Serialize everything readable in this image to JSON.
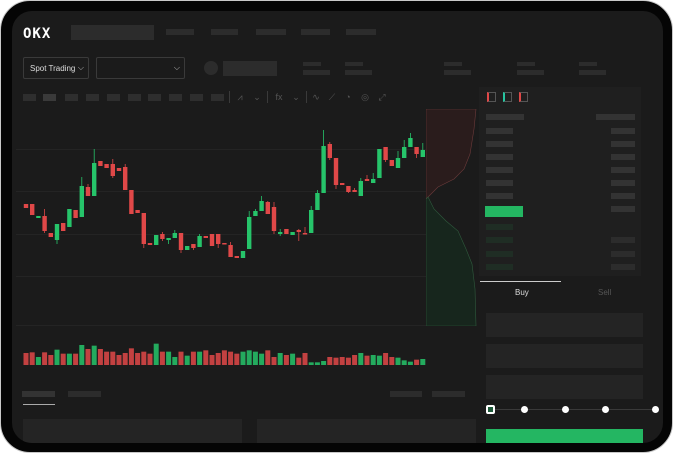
{
  "header": {
    "logo": "OKX"
  },
  "market_select": {
    "label": "Spot Trading"
  },
  "trade_tabs": [
    {
      "label": "Buy",
      "active": true
    },
    {
      "label": "Sell",
      "active": false
    }
  ],
  "colors": {
    "up": "#26c46a",
    "down": "#e04848",
    "buy_button": "#24b662",
    "background": "#1b1b1b"
  },
  "toolbar_icons": [
    "candles-icon",
    "indicator-icon",
    "fx-icon",
    "line-icon",
    "draw-icon",
    "camera-icon",
    "settings-icon",
    "fullscreen-icon"
  ],
  "orderbook_icons": [
    "orderbook-both-icon",
    "orderbook-bids-icon",
    "orderbook-asks-icon"
  ],
  "slider": {
    "value_percent": 0,
    "steps": [
      0,
      25,
      50,
      75,
      100
    ]
  },
  "chart_data": {
    "type": "candlestick",
    "title": "",
    "grid": true,
    "ylim": [
      100,
      250
    ],
    "ohlc": [
      [
        167,
        167,
        163,
        163
      ],
      [
        167,
        167,
        156,
        156
      ],
      [
        153,
        155,
        153,
        155
      ],
      [
        155,
        162,
        138,
        140
      ],
      [
        138,
        138,
        134,
        134
      ],
      [
        131,
        147,
        127,
        147
      ],
      [
        148,
        148,
        140,
        140
      ],
      [
        144,
        162,
        144,
        162
      ],
      [
        161,
        161,
        153,
        153
      ],
      [
        154,
        194,
        154,
        185
      ],
      [
        184,
        187,
        175,
        175
      ],
      [
        175,
        222,
        175,
        208
      ],
      [
        210,
        210,
        205,
        205
      ],
      [
        207,
        207,
        203,
        203
      ],
      [
        207,
        212,
        193,
        195
      ],
      [
        203,
        203,
        200,
        200
      ],
      [
        204,
        207,
        181,
        181
      ],
      [
        181,
        181,
        157,
        157
      ],
      [
        161,
        161,
        158,
        158
      ],
      [
        158,
        158,
        123,
        127
      ],
      [
        128,
        128,
        126,
        126
      ],
      [
        126,
        136,
        126,
        136
      ],
      [
        137,
        139,
        130,
        132
      ],
      [
        131,
        133,
        127,
        133
      ],
      [
        133,
        141,
        133,
        138
      ],
      [
        138,
        138,
        118,
        121
      ],
      [
        121,
        125,
        121,
        125
      ],
      [
        127,
        127,
        121,
        123
      ],
      [
        124,
        137,
        124,
        135
      ],
      [
        135,
        135,
        133,
        133
      ],
      [
        137,
        137,
        125,
        125
      ],
      [
        137,
        137,
        123,
        127
      ],
      [
        128,
        128,
        127,
        127
      ],
      [
        126,
        129,
        114,
        114
      ],
      [
        115,
        115,
        113,
        113
      ],
      [
        113,
        120,
        113,
        120
      ],
      [
        122,
        160,
        122,
        154
      ],
      [
        155,
        162,
        155,
        160
      ],
      [
        160,
        175,
        160,
        170
      ],
      [
        169,
        170,
        157,
        157
      ],
      [
        164,
        169,
        137,
        140
      ],
      [
        137,
        142,
        135,
        139
      ],
      [
        142,
        142,
        137,
        137
      ],
      [
        136,
        139,
        136,
        139
      ],
      [
        141,
        142,
        130,
        139
      ],
      [
        138,
        144,
        137,
        137
      ],
      [
        138,
        165,
        138,
        161
      ],
      [
        161,
        181,
        161,
        178
      ],
      [
        178,
        241,
        178,
        225
      ],
      [
        227,
        229,
        211,
        213
      ],
      [
        213,
        213,
        182,
        186
      ],
      [
        188,
        188,
        186,
        186
      ],
      [
        185,
        185,
        178,
        179
      ],
      [
        181,
        183,
        179,
        179
      ],
      [
        175,
        193,
        175,
        190
      ],
      [
        192,
        196,
        190,
        190
      ],
      [
        188,
        198,
        188,
        192
      ],
      [
        193,
        222,
        193,
        222
      ],
      [
        224,
        224,
        209,
        211
      ],
      [
        211,
        211,
        205,
        205
      ],
      [
        203,
        220,
        203,
        213
      ],
      [
        213,
        231,
        213,
        224
      ],
      [
        224,
        238,
        224,
        233
      ],
      [
        224,
        224,
        213,
        217
      ],
      [
        214,
        228,
        214,
        221
      ]
    ],
    "volume": [
      36,
      38,
      24,
      38,
      30,
      46,
      34,
      34,
      34,
      60,
      48,
      58,
      48,
      40,
      40,
      30,
      36,
      50,
      36,
      40,
      34,
      64,
      40,
      40,
      24,
      40,
      28,
      40,
      40,
      44,
      30,
      36,
      44,
      40,
      34,
      40,
      44,
      40,
      34,
      44,
      24,
      36,
      30,
      34,
      22,
      36,
      8,
      8,
      12,
      24,
      22,
      24,
      22,
      30,
      36,
      28,
      30,
      28,
      36,
      24,
      22,
      14,
      10,
      16,
      18
    ]
  }
}
